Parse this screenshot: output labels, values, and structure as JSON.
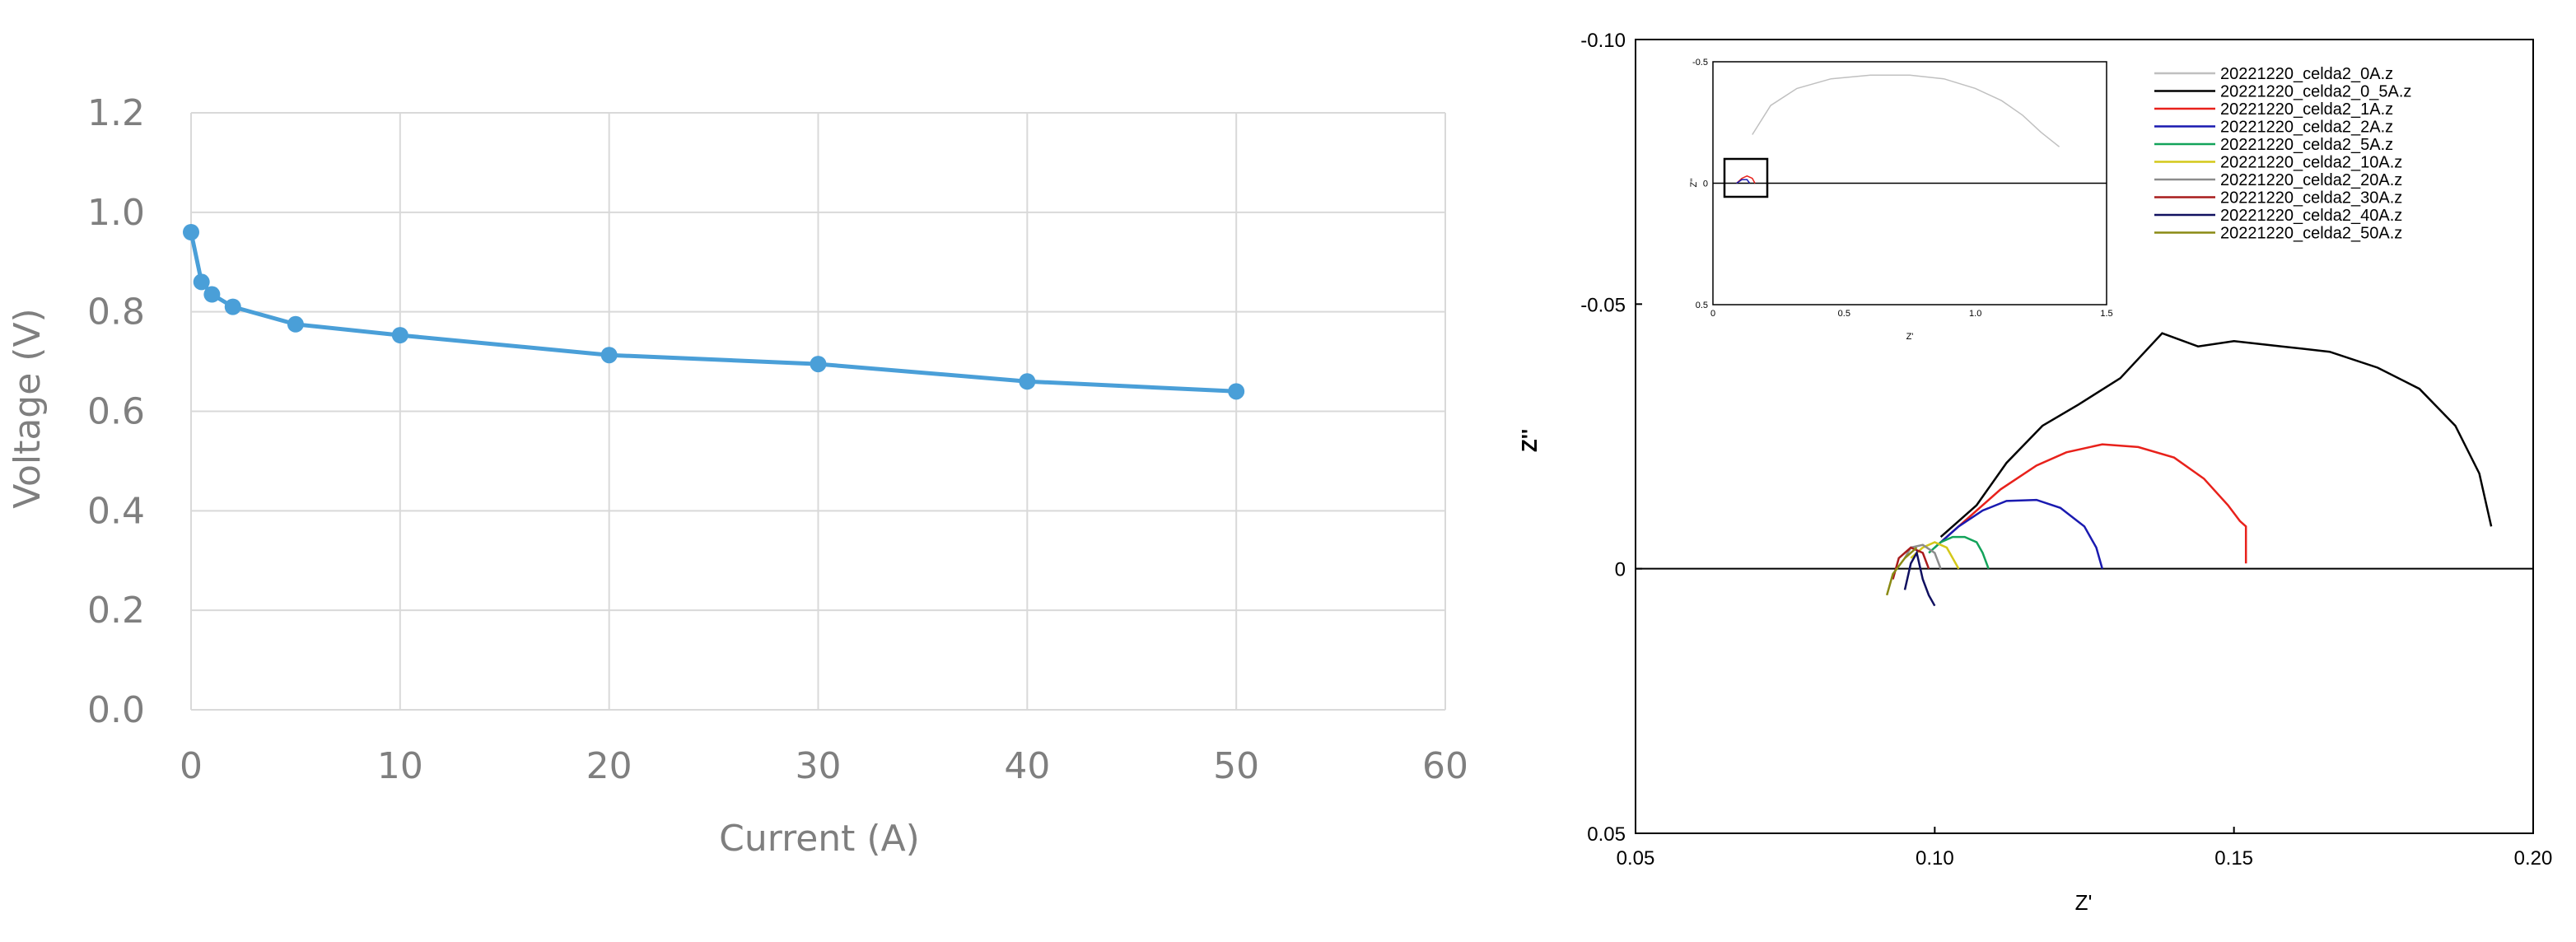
{
  "chart_data": [
    {
      "type": "line",
      "title": "",
      "xlabel": "Current (A)",
      "ylabel": "Voltage (V)",
      "xlim": [
        0,
        60
      ],
      "ylim": [
        0.0,
        1.2
      ],
      "xticks": [
        "0",
        "10",
        "20",
        "30",
        "40",
        "50",
        "60"
      ],
      "yticks": [
        "0.0",
        "0.2",
        "0.4",
        "0.6",
        "0.8",
        "1.0",
        "1.2"
      ],
      "grid": true,
      "legend": "none",
      "color": "#4a9fd8",
      "series": [
        {
          "x": [
            0,
            0.5,
            1,
            2,
            5,
            10,
            20,
            30,
            40,
            50
          ],
          "y": [
            0.96,
            0.86,
            0.835,
            0.81,
            0.775,
            0.753,
            0.713,
            0.695,
            0.66,
            0.64
          ]
        }
      ]
    },
    {
      "type": "line",
      "title": "",
      "xlabel": "Z'",
      "ylabel": "Z''",
      "xlim": [
        0.05,
        0.2
      ],
      "ylim": [
        -0.1,
        0.05
      ],
      "y_axis_inverted": true,
      "xticks": [
        "0.05",
        "0.10",
        "0.15",
        "0.20"
      ],
      "yticks": [
        "-0.10",
        "-0.05",
        "0",
        "0.05"
      ],
      "grid": false,
      "legend": "top-right",
      "series": [
        {
          "name": "20221220_celda2_0A.z",
          "color": "#c0c0c0",
          "x": [],
          "y": []
        },
        {
          "name": "20221220_celda2_0_5A.z",
          "color": "#000000",
          "x": [
            0.101,
            0.107,
            0.112,
            0.118,
            0.124,
            0.131,
            0.138,
            0.144,
            0.15,
            0.158,
            0.166,
            0.174,
            0.181,
            0.187,
            0.191,
            0.193
          ],
          "y": [
            -0.006,
            -0.012,
            -0.02,
            -0.027,
            -0.031,
            -0.036,
            -0.0445,
            -0.042,
            -0.043,
            -0.042,
            -0.041,
            -0.038,
            -0.034,
            -0.027,
            -0.018,
            -0.008
          ]
        },
        {
          "name": "20221220_celda2_1A.z",
          "color": "#e8211b",
          "x": [
            0.101,
            0.106,
            0.111,
            0.117,
            0.122,
            0.128,
            0.134,
            0.14,
            0.145,
            0.149,
            0.151,
            0.152,
            0.152
          ],
          "y": [
            -0.005,
            -0.01,
            -0.015,
            -0.0195,
            -0.022,
            -0.0235,
            -0.023,
            -0.021,
            -0.017,
            -0.012,
            -0.009,
            -0.008,
            -0.001
          ]
        },
        {
          "name": "20221220_celda2_2A.z",
          "color": "#1a1ab0",
          "x": [
            0.1,
            0.104,
            0.108,
            0.112,
            0.117,
            0.121,
            0.125,
            0.127,
            0.128
          ],
          "y": [
            -0.004,
            -0.008,
            -0.011,
            -0.0128,
            -0.013,
            -0.0115,
            -0.008,
            -0.004,
            0.0
          ]
        },
        {
          "name": "20221220_celda2_5A.z",
          "color": "#13a35a",
          "x": [
            0.099,
            0.101,
            0.103,
            0.105,
            0.107,
            0.108,
            0.109
          ],
          "y": [
            -0.003,
            -0.005,
            -0.006,
            -0.006,
            -0.005,
            -0.003,
            0.0
          ]
        },
        {
          "name": "20221220_celda2_10A.z",
          "color": "#d4c81a",
          "x": [
            0.096,
            0.098,
            0.1,
            0.102,
            0.103,
            0.104
          ],
          "y": [
            -0.002,
            -0.004,
            -0.005,
            -0.004,
            -0.002,
            0.0
          ]
        },
        {
          "name": "20221220_celda2_20A.z",
          "color": "#8c8c8c",
          "x": [
            0.095,
            0.096,
            0.098,
            0.1,
            0.101
          ],
          "y": [
            -0.002,
            -0.004,
            -0.0045,
            -0.003,
            0.0
          ]
        },
        {
          "name": "20221220_celda2_30A.z",
          "color": "#a81c1c",
          "x": [
            0.093,
            0.094,
            0.096,
            0.098,
            0.099
          ],
          "y": [
            0.002,
            -0.002,
            -0.004,
            -0.003,
            0.0
          ]
        },
        {
          "name": "20221220_celda2_40A.z",
          "color": "#101060",
          "x": [
            0.095,
            0.096,
            0.097,
            0.098,
            0.099,
            0.1
          ],
          "y": [
            0.004,
            -0.001,
            -0.003,
            0.002,
            0.005,
            0.007
          ]
        },
        {
          "name": "20221220_celda2_50A.z",
          "color": "#8a8a14",
          "x": [
            0.092,
            0.093,
            0.095,
            0.097
          ],
          "y": [
            0.005,
            0.001,
            -0.002,
            -0.004
          ]
        }
      ],
      "inset": {
        "xlim": [
          0,
          1.5
        ],
        "ylim": [
          -0.5,
          0.5
        ],
        "xticks": [
          "0",
          "0.5",
          "1.0",
          "1.5"
        ],
        "yticks": [
          "-0.5",
          "0",
          "0.5"
        ],
        "xlabel": "Z'",
        "ylabel": "Z''",
        "series": [
          {
            "color": "#c0c0c0",
            "x": [
              0.15,
              0.22,
              0.32,
              0.45,
              0.6,
              0.75,
              0.88,
              1.0,
              1.1,
              1.18,
              1.25,
              1.32
            ],
            "y": [
              -0.2,
              -0.32,
              -0.39,
              -0.43,
              -0.445,
              -0.445,
              -0.43,
              -0.39,
              -0.34,
              -0.28,
              -0.21,
              -0.15
            ]
          },
          {
            "color": "#e8211b",
            "x": [
              0.09,
              0.11,
              0.13,
              0.15,
              0.16
            ],
            "y": [
              0.0,
              -0.02,
              -0.03,
              -0.02,
              0.0
            ]
          },
          {
            "color": "#1a1ab0",
            "x": [
              0.09,
              0.11,
              0.13,
              0.14
            ],
            "y": [
              0.0,
              -0.015,
              -0.015,
              0.0
            ]
          }
        ]
      }
    }
  ]
}
